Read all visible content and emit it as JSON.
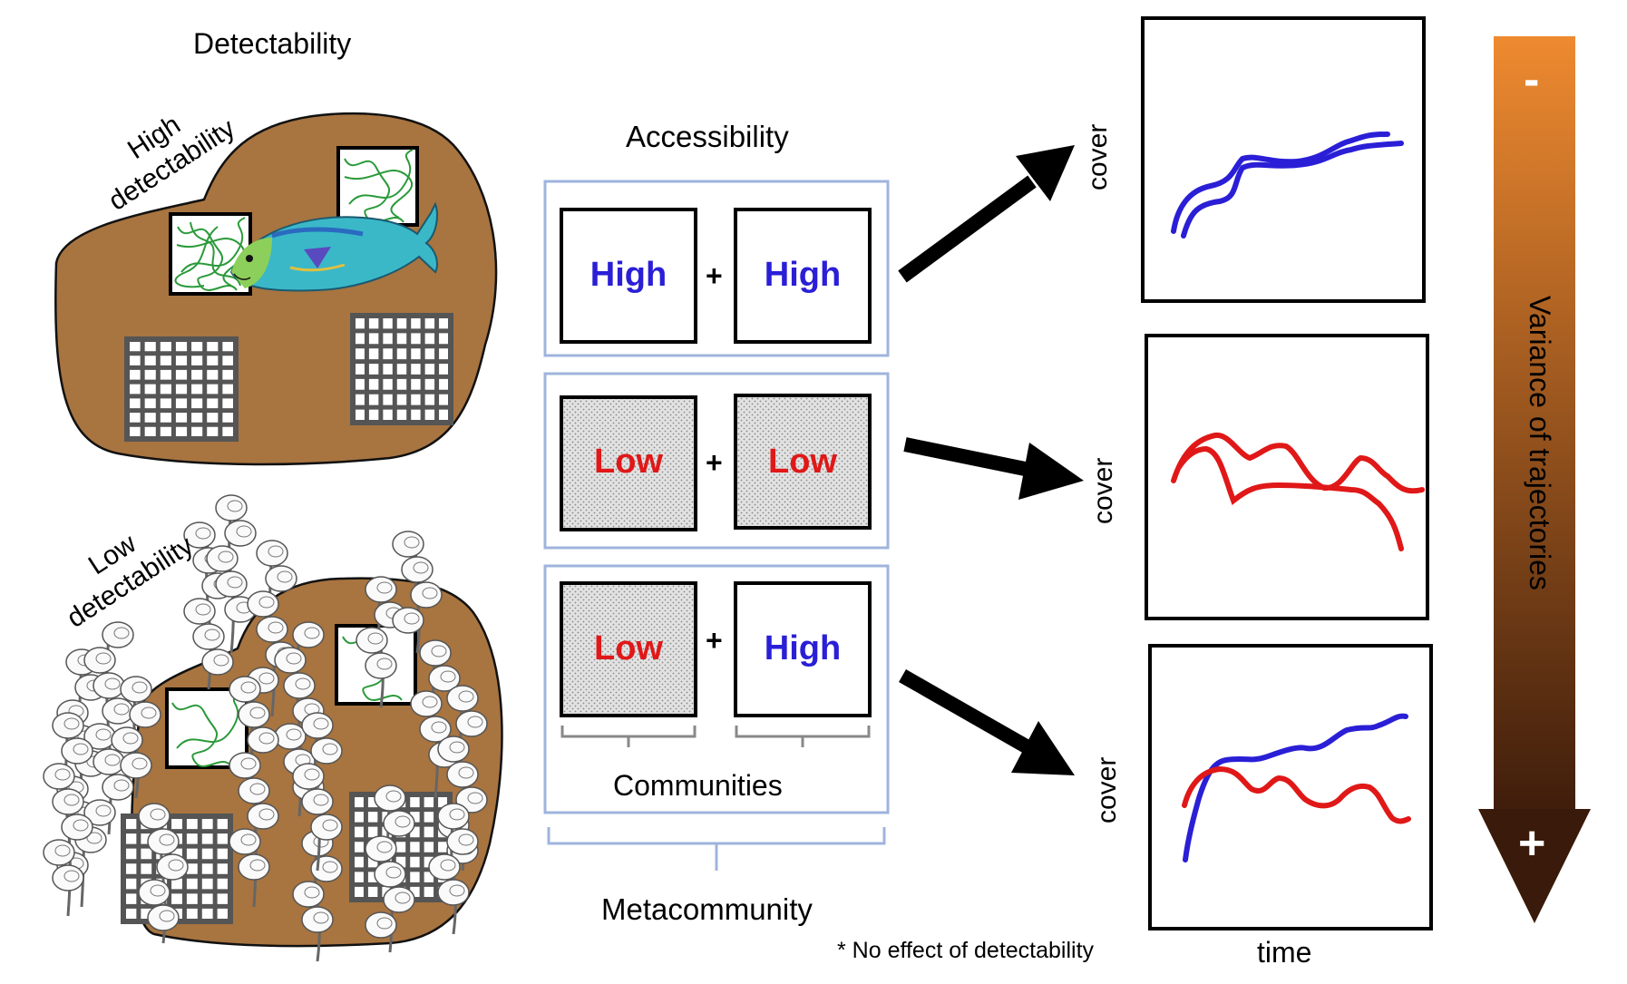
{
  "detectability": {
    "title": "Detectability",
    "high_label_line1": "High",
    "high_label_line2": "detectability",
    "low_label_line1": "Low",
    "low_label_line2": "detectability"
  },
  "accessibility": {
    "title": "Accessibility",
    "rows": [
      {
        "left": "High",
        "right": "High",
        "left_color": "#2a1fd6",
        "right_color": "#2a1fd6",
        "left_shaded": false,
        "right_shaded": false
      },
      {
        "left": "Low",
        "right": "Low",
        "left_color": "#e01818",
        "right_color": "#e01818",
        "left_shaded": true,
        "right_shaded": true
      },
      {
        "left": "Low",
        "right": "High",
        "left_color": "#e01818",
        "right_color": "#2a1fd6",
        "left_shaded": true,
        "right_shaded": false
      }
    ],
    "plus": "+",
    "communities_label": "Communities",
    "metacommunity_label": "Metacommunity"
  },
  "plots": {
    "y_label": "cover",
    "x_label": "time",
    "footnote": "* No effect of detectability"
  },
  "variance": {
    "label": "Variance of trajectories",
    "minus": "-",
    "plus": "+",
    "gradient_top": "#ee8a30",
    "gradient_bottom": "#3a1a0a"
  },
  "colors": {
    "reef": "#a87440",
    "blue_line": "#2a1fd6",
    "red_line": "#e01818",
    "algae": "#2a9a3a",
    "panel_border": "#9fb4dd",
    "cage": "#555555"
  }
}
